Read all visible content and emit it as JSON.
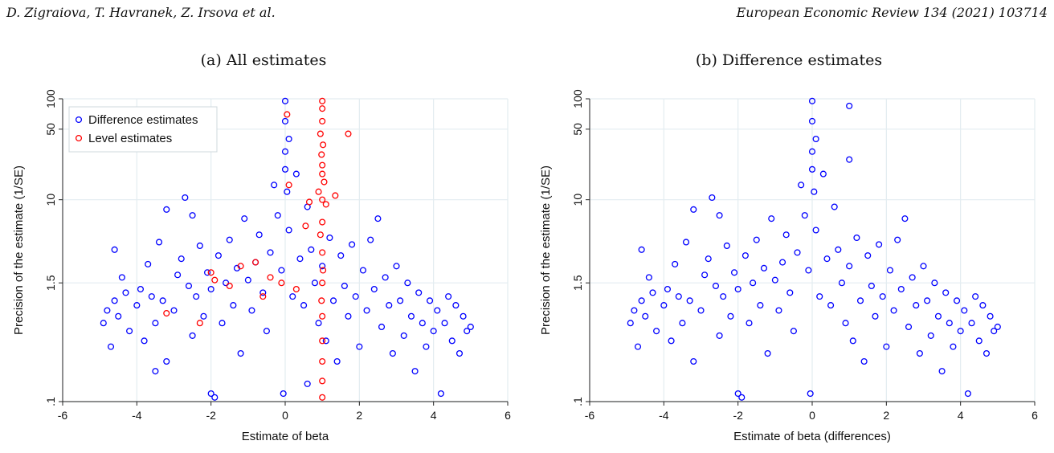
{
  "header": {
    "authors": "D. Zigraiova, T. Havranek, Z. Irsova et al.",
    "journal": "European Economic Review 134 (2021) 103714"
  },
  "chart_data": [
    {
      "type": "scatter",
      "caption": "(a) All estimates",
      "xlabel": "Estimate of beta",
      "ylabel": "Precision of the estimate (1/SE)",
      "xlim": [
        -6,
        6
      ],
      "xticks": [
        -6,
        -4,
        -2,
        0,
        2,
        4,
        6
      ],
      "ylim": [
        0.1,
        100
      ],
      "yscale": "log",
      "yticks": [
        0.1,
        1.5,
        10,
        50,
        100
      ],
      "ytick_labels": [
        ".1",
        "1.5",
        "10",
        "50",
        "100"
      ],
      "grid": true,
      "legend_position": "top-left",
      "series": [
        {
          "name": "Difference estimates",
          "color": "#0000ff",
          "marker": "hollow-circle",
          "points": [
            [
              -4.9,
              0.6
            ],
            [
              -4.8,
              0.8
            ],
            [
              -4.7,
              0.35
            ],
            [
              -4.6,
              1.0
            ],
            [
              -4.5,
              0.7
            ],
            [
              -4.6,
              3.2
            ],
            [
              -4.4,
              1.7
            ],
            [
              -4.3,
              1.2
            ],
            [
              -4.2,
              0.5
            ],
            [
              -4.0,
              0.9
            ],
            [
              -3.9,
              1.3
            ],
            [
              -3.8,
              0.4
            ],
            [
              -3.7,
              2.3
            ],
            [
              -3.6,
              1.1
            ],
            [
              -3.5,
              0.6
            ],
            [
              -3.4,
              3.8
            ],
            [
              -3.3,
              1.0
            ],
            [
              -3.2,
              0.25
            ],
            [
              -3.2,
              8.0
            ],
            [
              -3.0,
              0.8
            ],
            [
              -2.9,
              1.8
            ],
            [
              -2.8,
              2.6
            ],
            [
              -2.7,
              10.5
            ],
            [
              -2.6,
              1.4
            ],
            [
              -2.5,
              0.45
            ],
            [
              -2.5,
              7.0
            ],
            [
              -2.4,
              1.1
            ],
            [
              -2.3,
              3.5
            ],
            [
              -2.2,
              0.7
            ],
            [
              -2.1,
              1.9
            ],
            [
              -2.0,
              0.12
            ],
            [
              -2.0,
              1.3
            ],
            [
              -1.9,
              0.11
            ],
            [
              -1.8,
              2.8
            ],
            [
              -1.7,
              0.6
            ],
            [
              -1.6,
              1.5
            ],
            [
              -1.5,
              4.0
            ],
            [
              -1.4,
              0.9
            ],
            [
              -1.3,
              2.1
            ],
            [
              -1.2,
              0.3
            ],
            [
              -1.1,
              6.5
            ],
            [
              -1.0,
              1.6
            ],
            [
              -0.9,
              0.8
            ],
            [
              -0.8,
              2.4
            ],
            [
              -0.7,
              4.5
            ],
            [
              -0.6,
              1.2
            ],
            [
              -0.5,
              0.5
            ],
            [
              -0.4,
              3.0
            ],
            [
              -0.3,
              14.0
            ],
            [
              -0.2,
              7.0
            ],
            [
              -0.1,
              2.0
            ],
            [
              0.0,
              30.0
            ],
            [
              0.0,
              60.0
            ],
            [
              0.0,
              95.0
            ],
            [
              0.0,
              20.0
            ],
            [
              0.05,
              12.0
            ],
            [
              -0.05,
              0.12
            ],
            [
              0.1,
              40.0
            ],
            [
              0.1,
              5.0
            ],
            [
              0.2,
              1.1
            ],
            [
              0.3,
              18.0
            ],
            [
              0.4,
              2.6
            ],
            [
              0.5,
              0.9
            ],
            [
              0.6,
              8.5
            ],
            [
              0.7,
              3.2
            ],
            [
              0.8,
              1.5
            ],
            [
              0.9,
              0.6
            ],
            [
              1.0,
              2.2
            ],
            [
              1.1,
              0.4
            ],
            [
              1.2,
              4.2
            ],
            [
              1.3,
              1.0
            ],
            [
              1.4,
              0.25
            ],
            [
              1.5,
              2.8
            ],
            [
              1.6,
              1.4
            ],
            [
              1.7,
              0.7
            ],
            [
              1.8,
              3.6
            ],
            [
              1.9,
              1.1
            ],
            [
              2.0,
              0.35
            ],
            [
              2.1,
              2.0
            ],
            [
              2.2,
              0.8
            ],
            [
              2.3,
              4.0
            ],
            [
              2.4,
              1.3
            ],
            [
              2.5,
              6.5
            ],
            [
              2.6,
              0.55
            ],
            [
              2.7,
              1.7
            ],
            [
              2.8,
              0.9
            ],
            [
              2.9,
              0.3
            ],
            [
              3.0,
              2.2
            ],
            [
              3.1,
              1.0
            ],
            [
              3.2,
              0.45
            ],
            [
              3.3,
              1.5
            ],
            [
              3.4,
              0.7
            ],
            [
              3.5,
              0.2
            ],
            [
              3.6,
              1.2
            ],
            [
              3.7,
              0.6
            ],
            [
              3.8,
              0.35
            ],
            [
              3.9,
              1.0
            ],
            [
              4.0,
              0.5
            ],
            [
              4.1,
              0.8
            ],
            [
              4.2,
              0.12
            ],
            [
              4.3,
              0.6
            ],
            [
              4.4,
              1.1
            ],
            [
              4.5,
              0.4
            ],
            [
              4.6,
              0.9
            ],
            [
              4.7,
              0.3
            ],
            [
              4.8,
              0.7
            ],
            [
              4.9,
              0.5
            ],
            [
              5.0,
              0.55
            ],
            [
              -3.5,
              0.2
            ],
            [
              0.6,
              0.15
            ]
          ]
        },
        {
          "name": "Level estimates",
          "color": "#ff0000",
          "marker": "hollow-circle",
          "points": [
            [
              1.0,
              95.0
            ],
            [
              1.0,
              80.0
            ],
            [
              1.0,
              60.0
            ],
            [
              0.95,
              45.0
            ],
            [
              1.02,
              35.0
            ],
            [
              0.98,
              28.0
            ],
            [
              1.0,
              22.0
            ],
            [
              1.0,
              18.0
            ],
            [
              1.05,
              15.0
            ],
            [
              0.9,
              12.0
            ],
            [
              1.0,
              10.0
            ],
            [
              1.1,
              9.0
            ],
            [
              1.0,
              6.0
            ],
            [
              0.95,
              4.5
            ],
            [
              1.0,
              3.0
            ],
            [
              1.02,
              2.0
            ],
            [
              1.0,
              1.5
            ],
            [
              0.98,
              1.0
            ],
            [
              1.0,
              0.7
            ],
            [
              1.0,
              0.4
            ],
            [
              1.0,
              0.25
            ],
            [
              1.0,
              0.16
            ],
            [
              1.0,
              0.11
            ],
            [
              1.7,
              45.0
            ],
            [
              1.35,
              11.0
            ],
            [
              0.65,
              9.5
            ],
            [
              0.55,
              5.5
            ],
            [
              0.05,
              70.0
            ],
            [
              0.1,
              14.0
            ],
            [
              -0.1,
              1.5
            ],
            [
              -0.4,
              1.7
            ],
            [
              -0.8,
              2.4
            ],
            [
              -1.2,
              2.2
            ],
            [
              -1.5,
              1.4
            ],
            [
              -1.9,
              1.6
            ],
            [
              -2.3,
              0.6
            ],
            [
              -3.2,
              0.75
            ],
            [
              -2.0,
              1.9
            ],
            [
              0.3,
              1.3
            ],
            [
              -0.6,
              1.1
            ]
          ]
        }
      ]
    },
    {
      "type": "scatter",
      "caption": "(b) Difference estimates",
      "xlabel": "Estimate of beta (differences)",
      "ylabel": "Precision of the estimate (1/SE)",
      "xlim": [
        -6,
        6
      ],
      "xticks": [
        -6,
        -4,
        -2,
        0,
        2,
        4,
        6
      ],
      "ylim": [
        0.1,
        100
      ],
      "yscale": "log",
      "yticks": [
        0.1,
        1.5,
        10,
        50,
        100
      ],
      "ytick_labels": [
        ".1",
        "1.5",
        "10",
        "50",
        "100"
      ],
      "grid": true,
      "series": [
        {
          "color": "#0000ff",
          "marker": "hollow-circle",
          "points": [
            [
              -4.9,
              0.6
            ],
            [
              -4.8,
              0.8
            ],
            [
              -4.7,
              0.35
            ],
            [
              -4.6,
              1.0
            ],
            [
              -4.5,
              0.7
            ],
            [
              -4.6,
              3.2
            ],
            [
              -4.4,
              1.7
            ],
            [
              -4.3,
              1.2
            ],
            [
              -4.2,
              0.5
            ],
            [
              -4.0,
              0.9
            ],
            [
              -3.9,
              1.3
            ],
            [
              -3.8,
              0.4
            ],
            [
              -3.7,
              2.3
            ],
            [
              -3.6,
              1.1
            ],
            [
              -3.5,
              0.6
            ],
            [
              -3.4,
              3.8
            ],
            [
              -3.3,
              1.0
            ],
            [
              -3.2,
              0.25
            ],
            [
              -3.2,
              8.0
            ],
            [
              -3.0,
              0.8
            ],
            [
              -2.9,
              1.8
            ],
            [
              -2.8,
              2.6
            ],
            [
              -2.7,
              10.5
            ],
            [
              -2.6,
              1.4
            ],
            [
              -2.5,
              0.45
            ],
            [
              -2.5,
              7.0
            ],
            [
              -2.4,
              1.1
            ],
            [
              -2.3,
              3.5
            ],
            [
              -2.2,
              0.7
            ],
            [
              -2.1,
              1.9
            ],
            [
              -2.0,
              0.12
            ],
            [
              -2.0,
              1.3
            ],
            [
              -1.9,
              0.11
            ],
            [
              -1.8,
              2.8
            ],
            [
              -1.7,
              0.6
            ],
            [
              -1.6,
              1.5
            ],
            [
              -1.5,
              4.0
            ],
            [
              -1.4,
              0.9
            ],
            [
              -1.3,
              2.1
            ],
            [
              -1.2,
              0.3
            ],
            [
              -1.1,
              6.5
            ],
            [
              -1.0,
              1.6
            ],
            [
              -0.9,
              0.8
            ],
            [
              -0.8,
              2.4
            ],
            [
              -0.7,
              4.5
            ],
            [
              -0.6,
              1.2
            ],
            [
              -0.5,
              0.5
            ],
            [
              -0.4,
              3.0
            ],
            [
              -0.3,
              14.0
            ],
            [
              -0.2,
              7.0
            ],
            [
              -0.1,
              2.0
            ],
            [
              0.0,
              30.0
            ],
            [
              0.0,
              60.0
            ],
            [
              0.0,
              95.0
            ],
            [
              0.0,
              20.0
            ],
            [
              0.05,
              12.0
            ],
            [
              -0.05,
              0.12
            ],
            [
              0.1,
              40.0
            ],
            [
              0.1,
              5.0
            ],
            [
              0.2,
              1.1
            ],
            [
              0.3,
              18.0
            ],
            [
              0.4,
              2.6
            ],
            [
              0.5,
              0.9
            ],
            [
              0.6,
              8.5
            ],
            [
              0.7,
              3.2
            ],
            [
              0.8,
              1.5
            ],
            [
              0.9,
              0.6
            ],
            [
              1.0,
              85.0
            ],
            [
              1.0,
              25.0
            ],
            [
              1.0,
              2.2
            ],
            [
              1.1,
              0.4
            ],
            [
              1.2,
              4.2
            ],
            [
              1.3,
              1.0
            ],
            [
              1.4,
              0.25
            ],
            [
              1.5,
              2.8
            ],
            [
              1.6,
              1.4
            ],
            [
              1.7,
              0.7
            ],
            [
              1.8,
              3.6
            ],
            [
              1.9,
              1.1
            ],
            [
              2.0,
              0.35
            ],
            [
              2.1,
              2.0
            ],
            [
              2.2,
              0.8
            ],
            [
              2.3,
              4.0
            ],
            [
              2.4,
              1.3
            ],
            [
              2.5,
              6.5
            ],
            [
              2.6,
              0.55
            ],
            [
              2.7,
              1.7
            ],
            [
              2.8,
              0.9
            ],
            [
              2.9,
              0.3
            ],
            [
              3.0,
              2.2
            ],
            [
              3.1,
              1.0
            ],
            [
              3.2,
              0.45
            ],
            [
              3.3,
              1.5
            ],
            [
              3.4,
              0.7
            ],
            [
              3.5,
              0.2
            ],
            [
              3.6,
              1.2
            ],
            [
              3.7,
              0.6
            ],
            [
              3.8,
              0.35
            ],
            [
              3.9,
              1.0
            ],
            [
              4.0,
              0.5
            ],
            [
              4.1,
              0.8
            ],
            [
              4.2,
              0.12
            ],
            [
              4.3,
              0.6
            ],
            [
              4.4,
              1.1
            ],
            [
              4.5,
              0.4
            ],
            [
              4.6,
              0.9
            ],
            [
              4.7,
              0.3
            ],
            [
              4.8,
              0.7
            ],
            [
              4.9,
              0.5
            ],
            [
              5.0,
              0.55
            ]
          ]
        }
      ]
    }
  ]
}
